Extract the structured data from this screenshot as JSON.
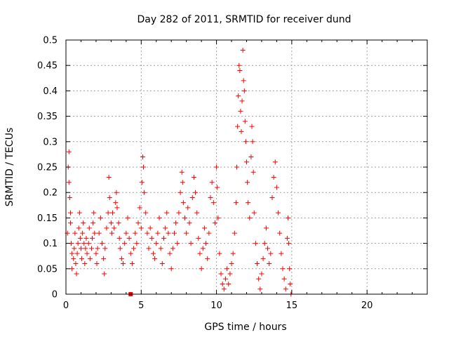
{
  "chart_data": {
    "type": "scatter",
    "title": "Day 282 of 2011, SRMTID for receiver dund",
    "xlabel": "GPS time / hours",
    "ylabel": "SRMTID / TECUs",
    "xlim": [
      0,
      24
    ],
    "ylim": [
      0,
      0.5
    ],
    "xticks": [
      0,
      5,
      10,
      15,
      20
    ],
    "yticks": [
      0,
      0.05,
      0.1,
      0.15,
      0.2,
      0.25,
      0.3,
      0.35,
      0.4,
      0.45,
      0.5
    ],
    "xtick_labels": [
      "0",
      "5",
      "10",
      "15",
      "20"
    ],
    "ytick_labels": [
      "0",
      "0.05",
      "0.1",
      "0.15",
      "0.2",
      "0.25",
      "0.3",
      "0.35",
      "0.4",
      "0.45",
      "0.5"
    ],
    "grid": true,
    "marker": "+",
    "color": "#ff0000",
    "square_marker": {
      "x": 4.3,
      "y": 0
    },
    "series": [
      {
        "name": "SRMTID",
        "points": [
          [
            0.1,
            0.12
          ],
          [
            0.15,
            0.25
          ],
          [
            0.2,
            0.28
          ],
          [
            0.2,
            0.22
          ],
          [
            0.25,
            0.19
          ],
          [
            0.3,
            0.16
          ],
          [
            0.3,
            0.14
          ],
          [
            0.35,
            0.1
          ],
          [
            0.4,
            0.08
          ],
          [
            0.4,
            0.05
          ],
          [
            0.5,
            0.07
          ],
          [
            0.55,
            0.09
          ],
          [
            0.6,
            0.12
          ],
          [
            0.65,
            0.06
          ],
          [
            0.7,
            0.04
          ],
          [
            0.75,
            0.08
          ],
          [
            0.8,
            0.1
          ],
          [
            0.85,
            0.13
          ],
          [
            0.9,
            0.16
          ],
          [
            0.95,
            0.11
          ],
          [
            1.0,
            0.09
          ],
          [
            1.05,
            0.07
          ],
          [
            1.1,
            0.12
          ],
          [
            1.15,
            0.14
          ],
          [
            1.2,
            0.1
          ],
          [
            1.25,
            0.06
          ],
          [
            1.3,
            0.09
          ],
          [
            1.35,
            0.11
          ],
          [
            1.4,
            0.08
          ],
          [
            1.5,
            0.1
          ],
          [
            1.55,
            0.13
          ],
          [
            1.6,
            0.07
          ],
          [
            1.7,
            0.09
          ],
          [
            1.75,
            0.11
          ],
          [
            1.8,
            0.14
          ],
          [
            1.85,
            0.16
          ],
          [
            1.9,
            0.12
          ],
          [
            2.0,
            0.08
          ],
          [
            2.05,
            0.06
          ],
          [
            2.1,
            0.09
          ],
          [
            2.2,
            0.12
          ],
          [
            2.3,
            0.15
          ],
          [
            2.4,
            0.1
          ],
          [
            2.5,
            0.07
          ],
          [
            2.55,
            0.04
          ],
          [
            2.6,
            0.09
          ],
          [
            2.7,
            0.13
          ],
          [
            2.8,
            0.16
          ],
          [
            2.85,
            0.23
          ],
          [
            2.9,
            0.19
          ],
          [
            3.0,
            0.14
          ],
          [
            3.05,
            0.12
          ],
          [
            3.1,
            0.16
          ],
          [
            3.2,
            0.13
          ],
          [
            3.3,
            0.18
          ],
          [
            3.35,
            0.2
          ],
          [
            3.4,
            0.17
          ],
          [
            3.5,
            0.14
          ],
          [
            3.55,
            0.11
          ],
          [
            3.6,
            0.09
          ],
          [
            3.7,
            0.07
          ],
          [
            3.8,
            0.06
          ],
          [
            3.9,
            0.1
          ],
          [
            4.0,
            0.12
          ],
          [
            4.1,
            0.15
          ],
          [
            4.2,
            0.11
          ],
          [
            4.3,
            0.08
          ],
          [
            4.4,
            0.06
          ],
          [
            4.5,
            0.09
          ],
          [
            4.6,
            0.12
          ],
          [
            4.7,
            0.1
          ],
          [
            4.8,
            0.14
          ],
          [
            4.9,
            0.17
          ],
          [
            5.0,
            0.13
          ],
          [
            5.05,
            0.22
          ],
          [
            5.1,
            0.27
          ],
          [
            5.15,
            0.25
          ],
          [
            5.2,
            0.2
          ],
          [
            5.3,
            0.16
          ],
          [
            5.4,
            0.12
          ],
          [
            5.5,
            0.09
          ],
          [
            5.6,
            0.13
          ],
          [
            5.7,
            0.11
          ],
          [
            5.8,
            0.08
          ],
          [
            5.9,
            0.07
          ],
          [
            6.0,
            0.1
          ],
          [
            6.1,
            0.12
          ],
          [
            6.2,
            0.15
          ],
          [
            6.3,
            0.09
          ],
          [
            6.4,
            0.06
          ],
          [
            6.5,
            0.11
          ],
          [
            6.6,
            0.13
          ],
          [
            6.7,
            0.16
          ],
          [
            6.8,
            0.12
          ],
          [
            6.9,
            0.08
          ],
          [
            7.0,
            0.05
          ],
          [
            7.1,
            0.09
          ],
          [
            7.2,
            0.12
          ],
          [
            7.3,
            0.14
          ],
          [
            7.4,
            0.1
          ],
          [
            7.5,
            0.16
          ],
          [
            7.6,
            0.2
          ],
          [
            7.7,
            0.24
          ],
          [
            7.75,
            0.22
          ],
          [
            7.8,
            0.18
          ],
          [
            7.9,
            0.15
          ],
          [
            8.0,
            0.12
          ],
          [
            8.1,
            0.17
          ],
          [
            8.2,
            0.14
          ],
          [
            8.3,
            0.1
          ],
          [
            8.4,
            0.19
          ],
          [
            8.5,
            0.23
          ],
          [
            8.6,
            0.2
          ],
          [
            8.7,
            0.16
          ],
          [
            8.8,
            0.11
          ],
          [
            8.9,
            0.08
          ],
          [
            9.0,
            0.05
          ],
          [
            9.1,
            0.09
          ],
          [
            9.2,
            0.13
          ],
          [
            9.3,
            0.1
          ],
          [
            9.4,
            0.07
          ],
          [
            9.5,
            0.12
          ],
          [
            9.6,
            0.19
          ],
          [
            9.7,
            0.22
          ],
          [
            9.8,
            0.18
          ],
          [
            9.9,
            0.14
          ],
          [
            10.0,
            0.25
          ],
          [
            10.05,
            0.21
          ],
          [
            10.1,
            0.15
          ],
          [
            10.2,
            0.08
          ],
          [
            10.3,
            0.04
          ],
          [
            10.4,
            0.02
          ],
          [
            10.5,
            0.01
          ],
          [
            10.6,
            0.03
          ],
          [
            10.7,
            0.05
          ],
          [
            10.8,
            0.02
          ],
          [
            10.9,
            0.04
          ],
          [
            11.0,
            0.06
          ],
          [
            11.1,
            0.08
          ],
          [
            11.2,
            0.12
          ],
          [
            11.3,
            0.18
          ],
          [
            11.35,
            0.25
          ],
          [
            11.4,
            0.33
          ],
          [
            11.45,
            0.39
          ],
          [
            11.5,
            0.45
          ],
          [
            11.55,
            0.44
          ],
          [
            11.6,
            0.36
          ],
          [
            11.65,
            0.32
          ],
          [
            11.7,
            0.38
          ],
          [
            11.75,
            0.48
          ],
          [
            11.8,
            0.42
          ],
          [
            11.85,
            0.4
          ],
          [
            11.9,
            0.34
          ],
          [
            11.95,
            0.3
          ],
          [
            12.0,
            0.26
          ],
          [
            12.05,
            0.22
          ],
          [
            12.1,
            0.18
          ],
          [
            12.2,
            0.15
          ],
          [
            12.3,
            0.27
          ],
          [
            12.35,
            0.33
          ],
          [
            12.4,
            0.3
          ],
          [
            12.45,
            0.24
          ],
          [
            12.5,
            0.16
          ],
          [
            12.6,
            0.1
          ],
          [
            12.7,
            0.06
          ],
          [
            12.8,
            0.03
          ],
          [
            12.9,
            0.01
          ],
          [
            13.0,
            0.04
          ],
          [
            13.1,
            0.07
          ],
          [
            13.2,
            0.1
          ],
          [
            13.3,
            0.13
          ],
          [
            13.4,
            0.09
          ],
          [
            13.5,
            0.06
          ],
          [
            13.6,
            0.08
          ],
          [
            13.7,
            0.19
          ],
          [
            13.8,
            0.23
          ],
          [
            13.9,
            0.26
          ],
          [
            14.0,
            0.21
          ],
          [
            14.1,
            0.16
          ],
          [
            14.2,
            0.12
          ],
          [
            14.3,
            0.08
          ],
          [
            14.4,
            0.05
          ],
          [
            14.5,
            0.03
          ],
          [
            14.6,
            0.01
          ],
          [
            14.7,
            0.11
          ],
          [
            14.75,
            0.15
          ],
          [
            14.8,
            0.1
          ],
          [
            14.85,
            0.05
          ],
          [
            14.9,
            0.02
          ],
          [
            14.95,
            0.0
          ]
        ]
      }
    ]
  }
}
